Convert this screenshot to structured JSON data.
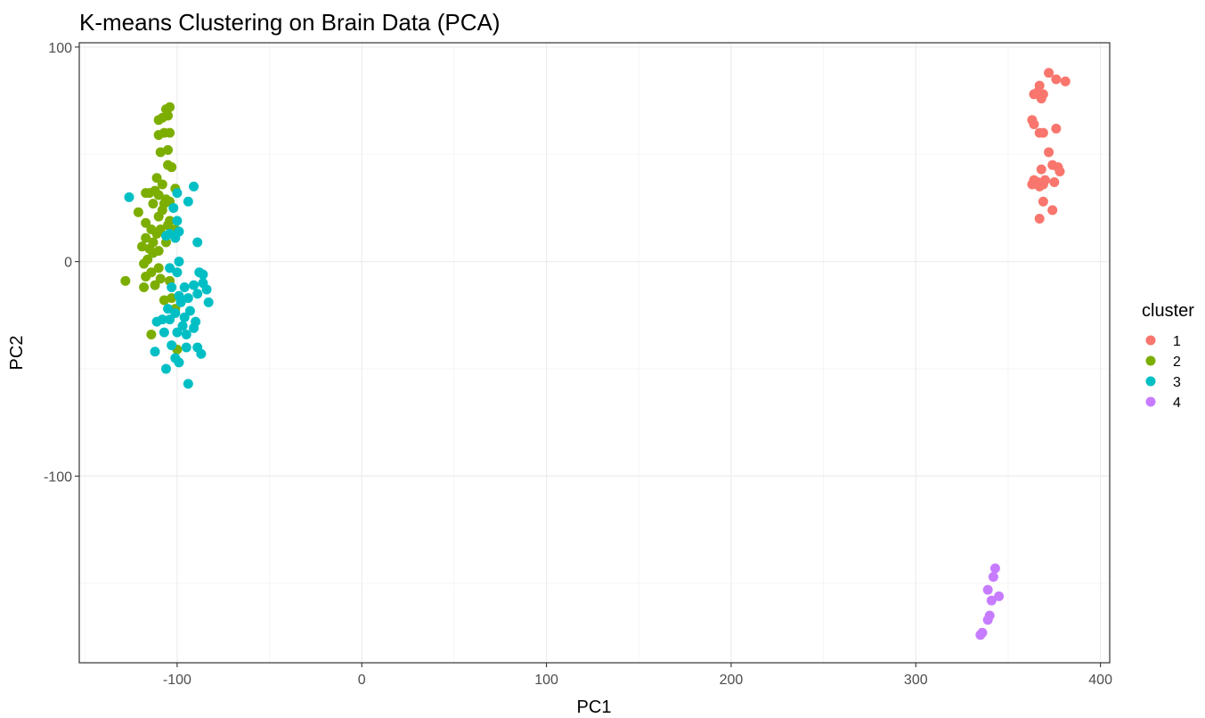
{
  "chart_data": {
    "type": "scatter",
    "title": "K-means Clustering on Brain Data (PCA)",
    "xlabel": "PC1",
    "ylabel": "PC2",
    "xlim": [
      -153,
      405
    ],
    "ylim": [
      -187,
      102
    ],
    "x_ticks": [
      -100,
      0,
      100,
      200,
      300,
      400
    ],
    "y_ticks": [
      -100,
      0,
      100
    ],
    "x_tick_labels": [
      "-100",
      "0",
      "100",
      "200",
      "300",
      "400"
    ],
    "y_tick_labels": [
      "-100",
      "0",
      "100"
    ],
    "grid": true,
    "legend": {
      "title": "cluster",
      "placement": "right"
    },
    "series": [
      {
        "name": "1",
        "color": "#F8766D",
        "points": [
          [
            372,
            88
          ],
          [
            367,
            82
          ],
          [
            376,
            85
          ],
          [
            381,
            84
          ],
          [
            364,
            78
          ],
          [
            366,
            79
          ],
          [
            369,
            78
          ],
          [
            368,
            76
          ],
          [
            363,
            66
          ],
          [
            364,
            64
          ],
          [
            367,
            60
          ],
          [
            369,
            60
          ],
          [
            376,
            62
          ],
          [
            372,
            51
          ],
          [
            374,
            45
          ],
          [
            377,
            44
          ],
          [
            378,
            42
          ],
          [
            368,
            43
          ],
          [
            364,
            38
          ],
          [
            366,
            37
          ],
          [
            363,
            36
          ],
          [
            367,
            35
          ],
          [
            369,
            36
          ],
          [
            370,
            38
          ],
          [
            375,
            37
          ],
          [
            369,
            28
          ],
          [
            374,
            24
          ],
          [
            367,
            20
          ]
        ]
      },
      {
        "name": "2",
        "color": "#7CAE00",
        "points": [
          [
            -104,
            72
          ],
          [
            -106,
            71
          ],
          [
            -105,
            68
          ],
          [
            -108,
            67
          ],
          [
            -110,
            66
          ],
          [
            -107,
            60
          ],
          [
            -104,
            60
          ],
          [
            -110,
            59
          ],
          [
            -105,
            52
          ],
          [
            -109,
            51
          ],
          [
            -105,
            45
          ],
          [
            -103,
            44
          ],
          [
            -111,
            39
          ],
          [
            -108,
            36
          ],
          [
            -112,
            33
          ],
          [
            -115,
            32
          ],
          [
            -117,
            32
          ],
          [
            -101,
            34
          ],
          [
            -110,
            31
          ],
          [
            -106,
            29
          ],
          [
            -104,
            28
          ],
          [
            -113,
            27
          ],
          [
            -107,
            27
          ],
          [
            -108,
            24
          ],
          [
            -121,
            23
          ],
          [
            -110,
            21
          ],
          [
            -104,
            19
          ],
          [
            -117,
            18
          ],
          [
            -105,
            17
          ],
          [
            -109,
            15
          ],
          [
            -114,
            15
          ],
          [
            -101,
            15
          ],
          [
            -111,
            13
          ],
          [
            -117,
            11
          ],
          [
            -113,
            9
          ],
          [
            -106,
            9
          ],
          [
            -119,
            7
          ],
          [
            -115,
            6
          ],
          [
            -110,
            5
          ],
          [
            -113,
            4
          ],
          [
            -116,
            1
          ],
          [
            -118,
            -1
          ],
          [
            -110,
            -3
          ],
          [
            -114,
            -5
          ],
          [
            -117,
            -7
          ],
          [
            -109,
            -8
          ],
          [
            -128,
            -9
          ],
          [
            -112,
            -11
          ],
          [
            -104,
            -9
          ],
          [
            -118,
            -12
          ],
          [
            -103,
            -17
          ],
          [
            -107,
            -18
          ],
          [
            -101,
            -22
          ],
          [
            -114,
            -34
          ],
          [
            -100,
            -41
          ]
        ]
      },
      {
        "name": "3",
        "color": "#00BFC4",
        "points": [
          [
            -126,
            30
          ],
          [
            -91,
            35
          ],
          [
            -100,
            32
          ],
          [
            -94,
            28
          ],
          [
            -102,
            25
          ],
          [
            -100,
            19
          ],
          [
            -99,
            14
          ],
          [
            -104,
            13
          ],
          [
            -106,
            12
          ],
          [
            -101,
            11
          ],
          [
            -89,
            9
          ],
          [
            -99,
            0
          ],
          [
            -104,
            -3
          ],
          [
            -100,
            -5
          ],
          [
            -88,
            -5
          ],
          [
            -86,
            -6
          ],
          [
            -86,
            -10
          ],
          [
            -91,
            -11
          ],
          [
            -96,
            -12
          ],
          [
            -103,
            -12
          ],
          [
            -99,
            -16
          ],
          [
            -84,
            -13
          ],
          [
            -89,
            -15
          ],
          [
            -94,
            -17
          ],
          [
            -98,
            -19
          ],
          [
            -83,
            -19
          ],
          [
            -105,
            -22
          ],
          [
            -93,
            -23
          ],
          [
            -101,
            -24
          ],
          [
            -96,
            -26
          ],
          [
            -104,
            -27
          ],
          [
            -108,
            -27
          ],
          [
            -111,
            -28
          ],
          [
            -90,
            -28
          ],
          [
            -97,
            -30
          ],
          [
            -91,
            -31
          ],
          [
            -107,
            -33
          ],
          [
            -100,
            -33
          ],
          [
            -95,
            -34
          ],
          [
            -112,
            -42
          ],
          [
            -103,
            -39
          ],
          [
            -95,
            -40
          ],
          [
            -89,
            -40
          ],
          [
            -87,
            -43
          ],
          [
            -101,
            -45
          ],
          [
            -99,
            -47
          ],
          [
            -106,
            -50
          ],
          [
            -94,
            -57
          ]
        ]
      },
      {
        "name": "4",
        "color": "#C77CFF",
        "points": [
          [
            343,
            -143
          ],
          [
            342,
            -147
          ],
          [
            339,
            -153
          ],
          [
            345,
            -156
          ],
          [
            341,
            -158
          ],
          [
            340,
            -165
          ],
          [
            339,
            -167
          ],
          [
            336,
            -173
          ],
          [
            335,
            -174
          ]
        ]
      }
    ]
  }
}
